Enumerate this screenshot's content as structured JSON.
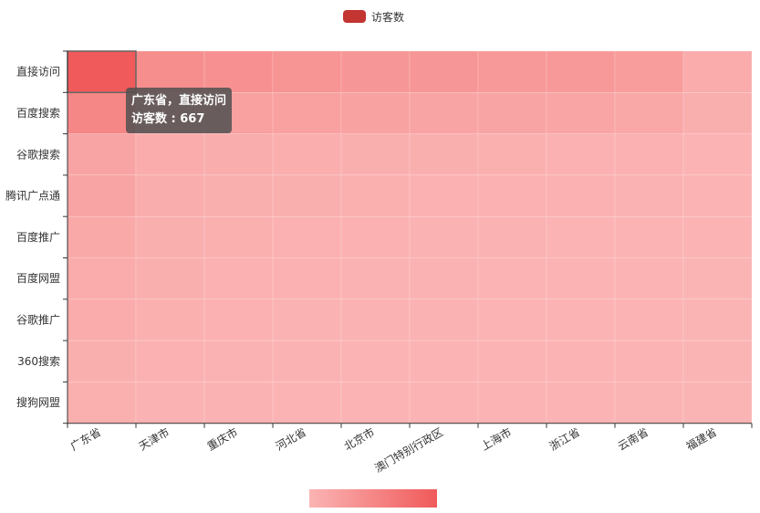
{
  "chart_data": {
    "type": "heatmap",
    "legend": {
      "label": "访客数",
      "color": "#c23531"
    },
    "x_categories": [
      "广东省",
      "天津市",
      "重庆市",
      "河北省",
      "北京市",
      "澳门特别行政区",
      "上海市",
      "浙江省",
      "云南省",
      "福建省"
    ],
    "y_categories": [
      "直接访问",
      "百度搜索",
      "谷歌搜索",
      "腾讯广点通",
      "百度推广",
      "百度网盟",
      "谷歌推广",
      "360搜索",
      "搜狗网盟"
    ],
    "series_name": "访客数",
    "values": [
      [
        667,
        280,
        260,
        240,
        220,
        220,
        200,
        200,
        180,
        60
      ],
      [
        330,
        160,
        150,
        140,
        130,
        120,
        120,
        110,
        100,
        40
      ],
      [
        120,
        60,
        50,
        45,
        40,
        35,
        30,
        25,
        20,
        10
      ],
      [
        120,
        50,
        40,
        35,
        30,
        25,
        22,
        20,
        18,
        8
      ],
      [
        80,
        40,
        30,
        25,
        20,
        15,
        12,
        10,
        8,
        4
      ],
      [
        70,
        35,
        25,
        20,
        18,
        14,
        10,
        8,
        6,
        3
      ],
      [
        60,
        30,
        22,
        18,
        15,
        12,
        9,
        7,
        5,
        2
      ],
      [
        40,
        20,
        15,
        12,
        10,
        8,
        6,
        5,
        4,
        1
      ],
      [
        30,
        15,
        12,
        10,
        8,
        6,
        5,
        4,
        3,
        1
      ]
    ],
    "visual_map": {
      "min": 0,
      "max": 667,
      "color_low": "#fbb4b4",
      "color_high": "#f05a5a"
    },
    "highlight": {
      "row": 0,
      "col": 0
    },
    "tooltip": {
      "line1": "广东省，直接访问",
      "line2": "访客数 : 667"
    }
  }
}
